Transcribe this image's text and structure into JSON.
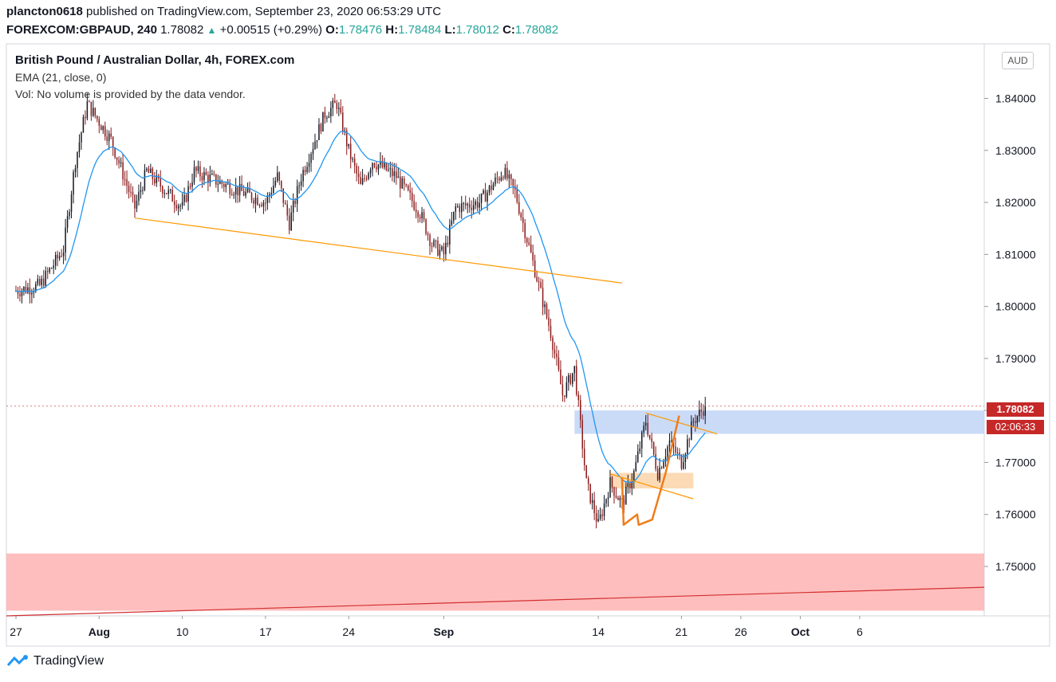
{
  "header": {
    "user": "plancton0618",
    "published": "published on TradingView.com, September 23, 2020 06:53:29 UTC",
    "symbol": "FOREXCOM:GBPAUD, 240",
    "last": "1.78082",
    "change": "+0.00515 (+0.29%)",
    "o_label": "O:",
    "o": "1.78476",
    "h_label": "H:",
    "h": "1.78484",
    "l_label": "L:",
    "l": "1.78012",
    "c_label": "C:",
    "c": "1.78082"
  },
  "legend": {
    "title": "British Pound / Australian Dollar, 4h, FOREX.com",
    "ema": "EMA (21, close, 0)",
    "vol": "Vol: No volume is provided by the data vendor."
  },
  "currency_badge": "AUD",
  "price_tag": {
    "price": "1.78082",
    "countdown": "02:06:33",
    "color": "#c62828"
  },
  "footer": {
    "brand": "TradingView"
  },
  "colors": {
    "up": "#131722",
    "down": "#8b1a1a",
    "ema": "#2196f3",
    "trend": "#ff9800",
    "support_zone": "#ffb3b3",
    "resistance_zone": "#b7cff4",
    "accumulation_zone": "#fcd3a9"
  },
  "chart_data": {
    "type": "candlestick",
    "title": "British Pound / Australian Dollar, 4h, FOREX.com",
    "y_ticks": [
      1.84,
      1.83,
      1.82,
      1.81,
      1.8,
      1.79,
      1.78,
      1.77,
      1.76,
      1.75
    ],
    "y_tick_labels": [
      "1.84000",
      "1.83000",
      "1.82000",
      "1.81000",
      "1.80000",
      "1.79000",
      "1.78000",
      "1.77000",
      "1.76000",
      "1.75000"
    ],
    "ylim": [
      1.7405,
      1.8505
    ],
    "x_ticks": [
      "27",
      "Aug",
      "10",
      "17",
      "24",
      "Sep",
      "14",
      "21",
      "26",
      "Oct",
      "6"
    ],
    "x_tick_dates": [
      "2020-07-27",
      "2020-08-03",
      "2020-08-10",
      "2020-08-17",
      "2020-08-24",
      "2020-09-01",
      "2020-09-14",
      "2020-09-21",
      "2020-09-26",
      "2020-10-01",
      "2020-10-06"
    ],
    "price_path": [
      [
        "2020-07-27",
        1.803
      ],
      [
        "2020-07-29",
        1.804
      ],
      [
        "2020-07-31",
        1.811
      ],
      [
        "2020-08-01",
        1.828
      ],
      [
        "2020-08-02",
        1.839
      ],
      [
        "2020-08-04",
        1.832
      ],
      [
        "2020-08-06",
        1.819
      ],
      [
        "2020-08-07",
        1.826
      ],
      [
        "2020-08-10",
        1.819
      ],
      [
        "2020-08-11",
        1.826
      ],
      [
        "2020-08-13",
        1.824
      ],
      [
        "2020-08-15",
        1.822
      ],
      [
        "2020-08-17",
        1.82
      ],
      [
        "2020-08-18",
        1.825
      ],
      [
        "2020-08-19",
        1.816
      ],
      [
        "2020-08-20",
        1.825
      ],
      [
        "2020-08-22",
        1.837
      ],
      [
        "2020-08-23",
        1.839
      ],
      [
        "2020-08-24",
        1.83
      ],
      [
        "2020-08-25",
        1.823
      ],
      [
        "2020-08-26",
        1.828
      ],
      [
        "2020-08-28",
        1.825
      ],
      [
        "2020-08-30",
        1.818
      ],
      [
        "2020-08-31",
        1.812
      ],
      [
        "2020-09-01",
        1.81
      ],
      [
        "2020-09-02",
        1.819
      ],
      [
        "2020-09-04",
        1.82
      ],
      [
        "2020-09-06",
        1.826
      ],
      [
        "2020-09-07",
        1.822
      ],
      [
        "2020-09-08",
        1.813
      ],
      [
        "2020-09-09",
        1.804
      ],
      [
        "2020-09-10",
        1.795
      ],
      [
        "2020-09-11",
        1.783
      ],
      [
        "2020-09-12",
        1.788
      ],
      [
        "2020-09-13",
        1.766
      ],
      [
        "2020-09-14",
        1.758
      ],
      [
        "2020-09-15",
        1.766
      ],
      [
        "2020-09-16",
        1.762
      ],
      [
        "2020-09-17",
        1.768
      ],
      [
        "2020-09-18",
        1.778
      ],
      [
        "2020-09-19",
        1.768
      ],
      [
        "2020-09-20",
        1.774
      ],
      [
        "2020-09-21",
        1.77
      ],
      [
        "2020-09-22",
        1.778
      ],
      [
        "2020-09-23",
        1.7808
      ]
    ],
    "last_close": 1.78082,
    "ema_period": 21,
    "zones": [
      {
        "name": "resistance",
        "from": "2020-09-12",
        "to": "2020-10-09",
        "low": 1.7755,
        "high": 1.78
      },
      {
        "name": "support",
        "from": "2020-07-27",
        "to": "2020-10-09",
        "low": 1.7415,
        "high": 1.7525
      },
      {
        "name": "accumulation",
        "from": "2020-09-15",
        "to": "2020-09-22",
        "low": 1.765,
        "high": 1.768
      }
    ],
    "trendlines": [
      {
        "name": "descending-support",
        "x1": "2020-08-06",
        "y1": 1.817,
        "x2": "2020-09-16",
        "y2": 1.8045
      },
      {
        "name": "falling-wedge",
        "x1": "2020-09-15",
        "y1": 1.7678,
        "x2": "2020-09-22",
        "y2": 1.763
      },
      {
        "name": "upper-channel",
        "x1": "2020-09-18",
        "y1": 1.7795,
        "x2": "2020-09-24",
        "y2": 1.7755
      },
      {
        "name": "long-support",
        "x1": "2020-07-31",
        "y1": 1.7405,
        "x2": "2020-10-09",
        "y2": 1.746
      }
    ],
    "projection": [
      [
        "2020-09-16",
        1.767
      ],
      [
        "2020-09-16",
        1.758
      ],
      [
        "2020-09-17",
        1.76
      ],
      [
        "2020-09-17",
        1.758
      ],
      [
        "2020-09-18",
        1.759
      ],
      [
        "2020-09-19",
        1.768
      ],
      [
        "2020-09-20",
        1.779
      ]
    ]
  }
}
